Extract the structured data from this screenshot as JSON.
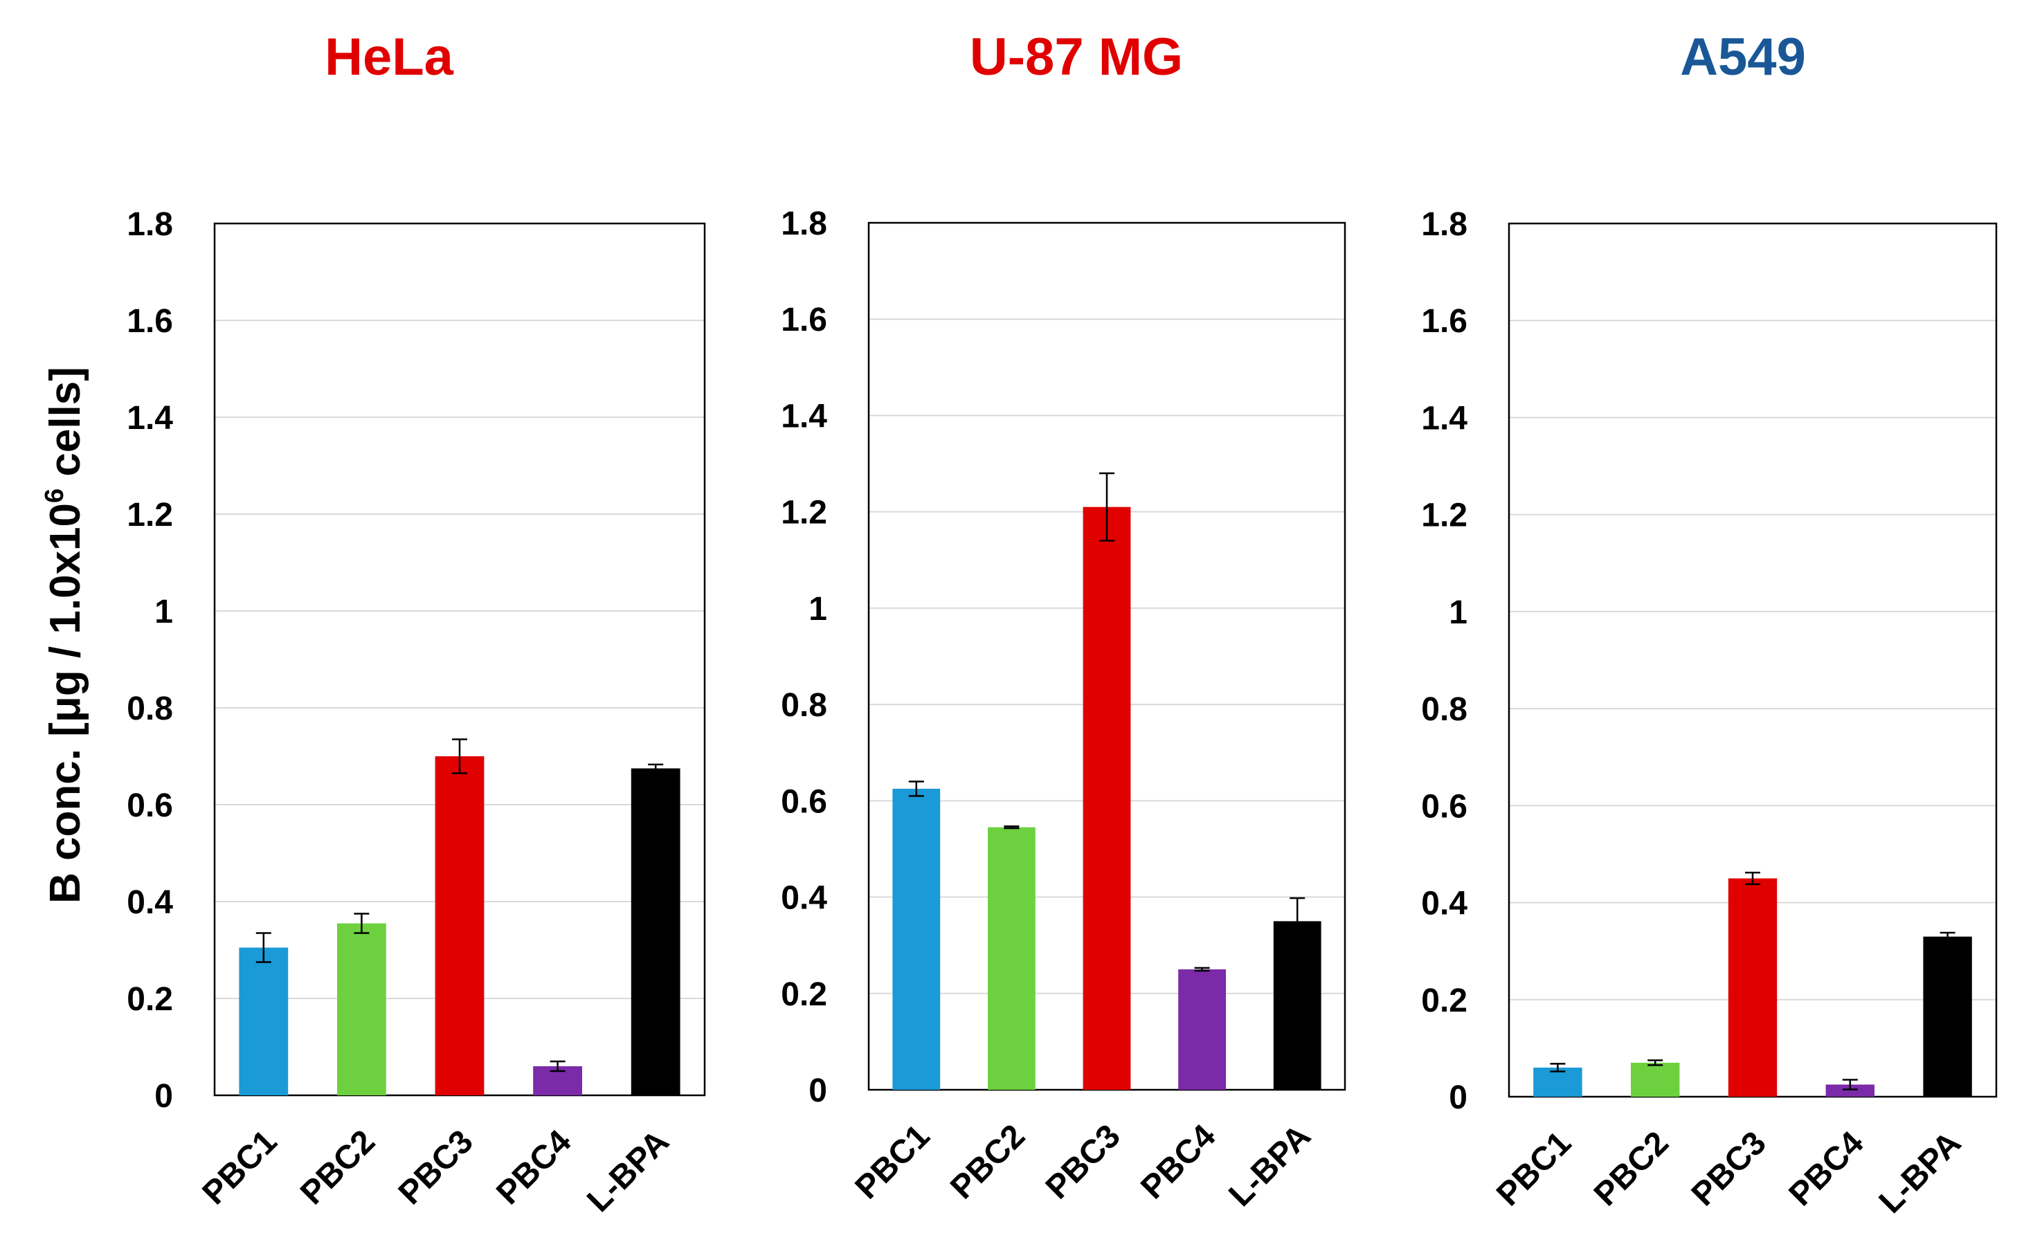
{
  "y_axis_title": {
    "main": "B conc. [μg / 1.0x10",
    "superscript": "6",
    "suffix": " cells]"
  },
  "colors": {
    "PBC1": "#1a9ad6",
    "PBC2": "#6dd13f",
    "PBC3": "#e00000",
    "PBC4": "#7b2aa8",
    "L-BPA": "#000000",
    "title_red": "#e00000",
    "title_blue": "#1a5797"
  },
  "chart_data": [
    {
      "type": "bar",
      "title": "HeLa",
      "title_color": "#e00000",
      "ylabel": "B conc. [μg / 1.0x10^6 cells]",
      "ylim": [
        0,
        1.8
      ],
      "yticks": [
        "0",
        "0.2",
        "0.4",
        "0.6",
        "0.8",
        "1",
        "1.2",
        "1.4",
        "1.6",
        "1.8"
      ],
      "grid": true,
      "categories": [
        "PBC1",
        "PBC2",
        "PBC3",
        "PBC4",
        "L-BPA"
      ],
      "values": [
        0.305,
        0.355,
        0.7,
        0.06,
        0.675
      ],
      "errors": [
        0.03,
        0.02,
        0.035,
        0.01,
        0.008
      ]
    },
    {
      "type": "bar",
      "title": "U-87 MG",
      "title_color": "#e00000",
      "ylim": [
        0,
        1.8
      ],
      "yticks": [
        "0",
        "0.2",
        "0.4",
        "0.6",
        "0.8",
        "1",
        "1.2",
        "1.4",
        "1.6",
        "1.8"
      ],
      "grid": true,
      "categories": [
        "PBC1",
        "PBC2",
        "PBC3",
        "PBC4",
        "L-BPA"
      ],
      "values": [
        0.625,
        0.545,
        1.21,
        0.25,
        0.35
      ],
      "errors": [
        0.015,
        0.002,
        0.07,
        0.003,
        0.048
      ]
    },
    {
      "type": "bar",
      "title": "A549",
      "title_color": "#1a5797",
      "ylim": [
        0,
        1.8
      ],
      "yticks": [
        "0",
        "0.2",
        "0.4",
        "0.6",
        "0.8",
        "1",
        "1.2",
        "1.4",
        "1.6",
        "1.8"
      ],
      "grid": true,
      "categories": [
        "PBC1",
        "PBC2",
        "PBC3",
        "PBC4",
        "L-BPA"
      ],
      "values": [
        0.06,
        0.07,
        0.45,
        0.025,
        0.33
      ],
      "errors": [
        0.008,
        0.005,
        0.012,
        0.01,
        0.008
      ]
    }
  ]
}
